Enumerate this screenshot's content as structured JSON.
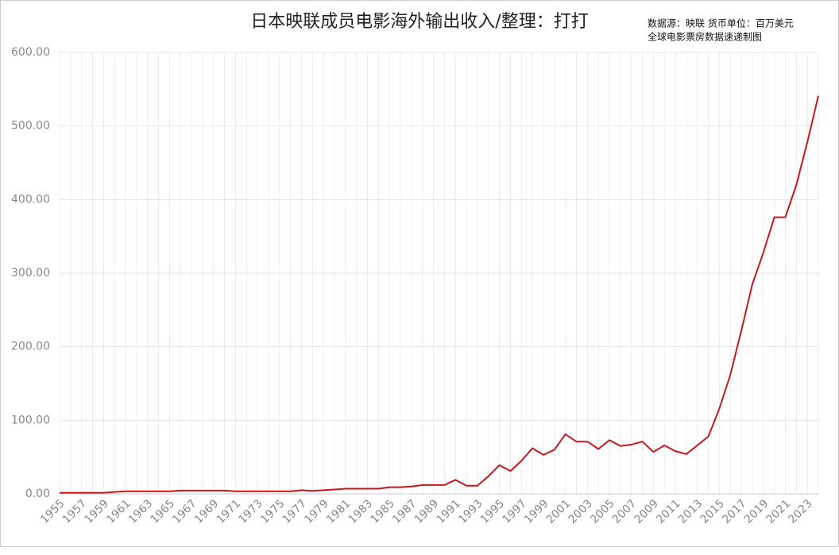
{
  "chart_data": {
    "type": "line",
    "title": "日本映联成员电影海外输出收入/整理：打打",
    "source": [
      "数据源：映联 货币单位：百万美元",
      "全球电影票房数据速递制图"
    ],
    "categories": [
      "1955",
      null,
      "1957",
      null,
      "1959",
      null,
      "1961",
      null,
      "1963",
      null,
      "1965",
      null,
      "1967",
      null,
      "1969",
      null,
      "1971",
      null,
      "1973",
      null,
      "1975",
      null,
      "1977",
      null,
      "1979",
      null,
      "1981",
      null,
      "1983",
      null,
      "1985",
      null,
      "1987",
      null,
      "1989",
      null,
      "1991",
      null,
      "1993",
      null,
      "1995",
      null,
      "1997",
      null,
      "1999",
      null,
      "2001",
      null,
      "2003",
      null,
      "2005",
      null,
      "2007",
      null,
      "2009",
      null,
      "2011",
      null,
      "2013",
      null,
      "2015",
      null,
      "2017",
      null,
      "2019",
      null,
      "2021",
      null,
      "2023",
      null
    ],
    "series": [
      {
        "name": "海外输出收入",
        "color": "#c8161d",
        "values": [
          1.5,
          1.5,
          1.5,
          1.5,
          1.5,
          2.5,
          3.5,
          3.5,
          3.5,
          3.5,
          3.5,
          4.5,
          4.5,
          4.5,
          4.5,
          4.5,
          3.5,
          3.5,
          3.5,
          3.5,
          3.5,
          3.5,
          5,
          4,
          5,
          6,
          7,
          7,
          7,
          7,
          9,
          9,
          10,
          12,
          12,
          12,
          19,
          11,
          11,
          24,
          39,
          31,
          45,
          62,
          53,
          60,
          81,
          71,
          71,
          61,
          73,
          65,
          67,
          71,
          57,
          66,
          58,
          54,
          66,
          78,
          116,
          162,
          222,
          285,
          328,
          376,
          376,
          420,
          478,
          541
        ]
      }
    ],
    "ylim": [
      0,
      600
    ],
    "yticks": [
      {
        "value": 0,
        "label": "0.00"
      },
      {
        "value": 100,
        "label": "100.00"
      },
      {
        "value": 200,
        "label": "200.00"
      },
      {
        "value": 300,
        "label": "300.00"
      },
      {
        "value": 400,
        "label": "400.00"
      },
      {
        "value": 500,
        "label": "500.00"
      },
      {
        "value": 600,
        "label": "600.00"
      }
    ],
    "grid": true
  }
}
